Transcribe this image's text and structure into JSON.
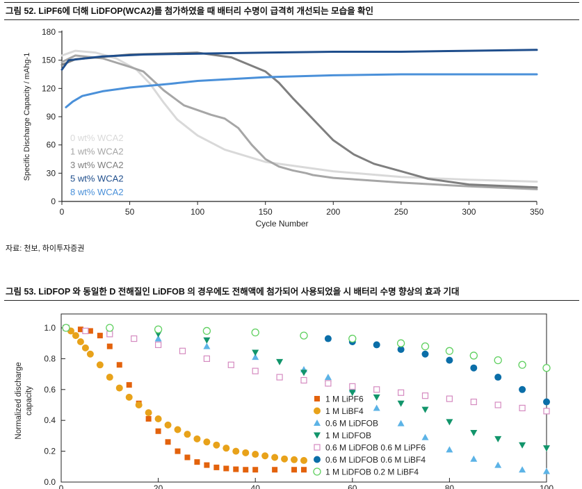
{
  "figure52": {
    "title": "그림 52. LiPF6에 더해 LiDFOP(WCA2)를 첨가하였을 때 배터리 수명이 급격히 개선되는 모습을 확인",
    "source": "자료: 천보, 하이투자증권"
  },
  "figure53": {
    "title": "그림 53. LiDFOP 와 동일한 D 전해질인 LiDFOB 의 경우에도 전해액에 첨가되어 사용되었을 시 배터리 수명 향상의 효과 기대"
  },
  "chart_data": [
    {
      "type": "line",
      "xlabel": "Cycle Number",
      "ylabel": "Specific Discharge Capacity / mAhg-1",
      "xlim": [
        0,
        350
      ],
      "ylim": [
        0,
        180
      ],
      "xticks": [
        0,
        50,
        100,
        150,
        200,
        250,
        300,
        350
      ],
      "yticks": [
        0,
        30,
        60,
        90,
        120,
        150,
        180
      ],
      "grid": false,
      "legend_position": "left, inside plot",
      "series": [
        {
          "name": "0 wt% WCA2",
          "color": "#d9d9d9",
          "x": [
            0,
            10,
            25,
            40,
            55,
            65,
            75,
            85,
            100,
            120,
            150,
            200,
            250,
            300,
            350
          ],
          "y": [
            155,
            160,
            158,
            152,
            140,
            125,
            105,
            87,
            70,
            55,
            42,
            32,
            26,
            23,
            21
          ]
        },
        {
          "name": "1 wt% WCA2",
          "color": "#a6a6a6",
          "x": [
            0,
            10,
            30,
            50,
            60,
            75,
            90,
            110,
            120,
            130,
            140,
            150,
            160,
            170,
            180,
            185,
            200,
            250,
            300,
            350
          ],
          "y": [
            148,
            155,
            152,
            143,
            138,
            118,
            102,
            92,
            88,
            78,
            60,
            45,
            37,
            33,
            30,
            28,
            25,
            20,
            16,
            13
          ]
        },
        {
          "name": "3 wt% WCA2",
          "color": "#7f7f7f",
          "x": [
            0,
            10,
            50,
            100,
            125,
            150,
            160,
            170,
            180,
            190,
            200,
            215,
            230,
            250,
            270,
            300,
            350
          ],
          "y": [
            145,
            151,
            156,
            158,
            153,
            138,
            126,
            110,
            95,
            80,
            65,
            50,
            40,
            32,
            24,
            18,
            15
          ]
        },
        {
          "name": "5 wt% WCA2",
          "color": "#1f4e8c",
          "x": [
            0,
            5,
            30,
            60,
            100,
            150,
            200,
            250,
            300,
            350
          ],
          "y": [
            140,
            150,
            154,
            156,
            157,
            158,
            159,
            159,
            160,
            161
          ]
        },
        {
          "name": "8 wt% WCA2",
          "color": "#4a90d9",
          "x": [
            3,
            8,
            15,
            30,
            50,
            80,
            100,
            150,
            200,
            250,
            300,
            350
          ],
          "y": [
            100,
            106,
            112,
            117,
            121,
            125,
            128,
            132,
            134,
            135,
            135,
            135
          ]
        }
      ]
    },
    {
      "type": "scatter",
      "xlabel": "",
      "ylabel": "Normalized discharge capacity",
      "xlim": [
        0,
        100
      ],
      "ylim": [
        0,
        1.0
      ],
      "xticks": [
        0,
        20,
        40,
        60,
        80,
        100
      ],
      "yticks": [
        0.0,
        0.2,
        0.4,
        0.6,
        0.8,
        1.0
      ],
      "grid": false,
      "legend_position": "bottom-right",
      "series": [
        {
          "name": "1 M LiPF6",
          "color": "#e3620c",
          "marker": "square-filled",
          "x": [
            1,
            4,
            6,
            8,
            10,
            12,
            14,
            16,
            18,
            20,
            22,
            24,
            26,
            28,
            30,
            32,
            34,
            36,
            38,
            40,
            44,
            48,
            50
          ],
          "y": [
            1.0,
            0.99,
            0.98,
            0.95,
            0.88,
            0.76,
            0.63,
            0.51,
            0.41,
            0.33,
            0.26,
            0.2,
            0.16,
            0.13,
            0.11,
            0.095,
            0.088,
            0.083,
            0.08,
            0.08,
            0.08,
            0.08,
            0.08
          ]
        },
        {
          "name": "1 M LiBF4",
          "color": "#e8a21a",
          "marker": "circle-filled",
          "x": [
            1,
            2,
            3,
            4,
            5,
            6,
            8,
            10,
            12,
            14,
            16,
            18,
            20,
            22,
            24,
            26,
            28,
            30,
            32,
            34,
            36,
            38,
            40,
            42,
            44,
            46,
            48,
            50
          ],
          "y": [
            1.0,
            0.98,
            0.95,
            0.91,
            0.87,
            0.83,
            0.76,
            0.68,
            0.61,
            0.55,
            0.5,
            0.45,
            0.41,
            0.37,
            0.34,
            0.31,
            0.28,
            0.26,
            0.24,
            0.22,
            0.2,
            0.19,
            0.18,
            0.17,
            0.16,
            0.15,
            0.145,
            0.14
          ]
        },
        {
          "name": "0.6 M LiDFOB",
          "color": "#5cb3e6",
          "marker": "triangle-up-filled",
          "x": [
            1,
            10,
            20,
            30,
            40,
            50,
            55,
            60,
            65,
            70,
            75,
            80,
            85,
            90,
            95,
            100
          ],
          "y": [
            1.0,
            0.98,
            0.93,
            0.88,
            0.81,
            0.73,
            0.68,
            0.6,
            0.48,
            0.38,
            0.29,
            0.21,
            0.15,
            0.11,
            0.08,
            0.07
          ]
        },
        {
          "name": "1 M LiDFOB",
          "color": "#12956b",
          "marker": "triangle-down-filled",
          "x": [
            1,
            10,
            20,
            30,
            40,
            45,
            50,
            55,
            60,
            65,
            70,
            75,
            80,
            85,
            90,
            95,
            100
          ],
          "y": [
            1.0,
            0.99,
            0.96,
            0.92,
            0.84,
            0.78,
            0.71,
            0.64,
            0.58,
            0.55,
            0.51,
            0.47,
            0.39,
            0.32,
            0.28,
            0.24,
            0.22
          ]
        },
        {
          "name": "0.6 M LiDFOB 0.6 M LiPF6",
          "color": "#d58ac0",
          "marker": "square-open",
          "x": [
            1,
            5,
            10,
            15,
            20,
            25,
            30,
            35,
            40,
            45,
            50,
            55,
            60,
            65,
            70,
            75,
            80,
            85,
            90,
            95,
            100
          ],
          "y": [
            1.0,
            0.98,
            0.96,
            0.93,
            0.89,
            0.85,
            0.8,
            0.76,
            0.72,
            0.68,
            0.66,
            0.64,
            0.62,
            0.6,
            0.58,
            0.56,
            0.54,
            0.52,
            0.5,
            0.48,
            0.46
          ]
        },
        {
          "name": "0.6 M LiDFOB 0.6 M LiBF4",
          "color": "#0b6ea8",
          "marker": "circle-filled",
          "x": [
            1,
            10,
            20,
            30,
            40,
            50,
            55,
            60,
            65,
            70,
            75,
            80,
            85,
            90,
            95,
            100
          ],
          "y": [
            1.0,
            1.0,
            0.99,
            0.98,
            0.97,
            0.95,
            0.93,
            0.91,
            0.89,
            0.86,
            0.83,
            0.79,
            0.74,
            0.68,
            0.6,
            0.52
          ]
        },
        {
          "name": "1 M LiDFOB 0.2 M LiBF4",
          "color": "#5fd05f",
          "marker": "circle-open",
          "x": [
            1,
            10,
            20,
            30,
            40,
            50,
            60,
            70,
            75,
            80,
            85,
            90,
            95,
            100
          ],
          "y": [
            1.0,
            1.0,
            0.99,
            0.98,
            0.97,
            0.95,
            0.93,
            0.9,
            0.88,
            0.85,
            0.82,
            0.79,
            0.76,
            0.74
          ]
        }
      ]
    }
  ]
}
